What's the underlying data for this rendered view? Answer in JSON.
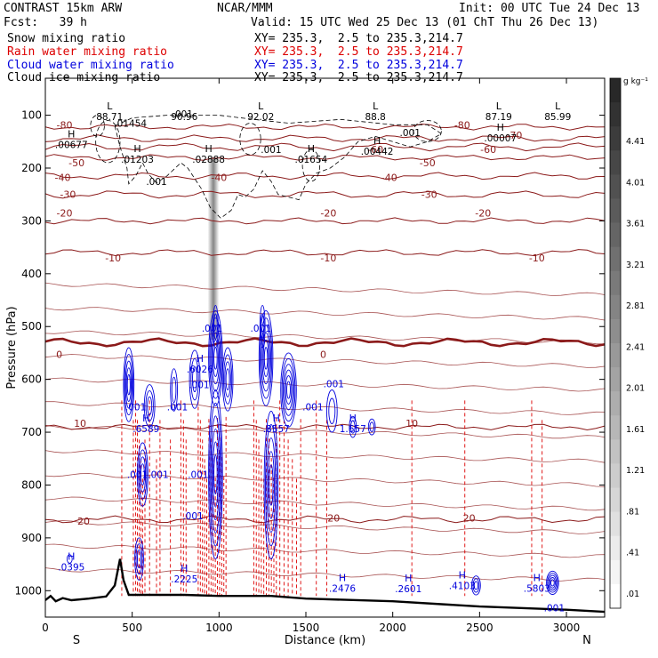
{
  "header": {
    "title": "CONTRAST 15km ARW",
    "center": "NCAR/MMM",
    "init": "Init: 00 UTC Tue 24 Dec 13",
    "fcst": "Fcst:   39 h",
    "valid": "Valid: 15 UTC Wed 25 Dec 13 (01 ChT Thu 26 Dec 13)"
  },
  "legend": {
    "fields": [
      {
        "name": "Snow mixing ratio",
        "xy": "XY= 235.3,  2.5 to 235.3,214.7",
        "color": "#000000"
      },
      {
        "name": "Rain water mixing ratio",
        "xy": "XY= 235.3,  2.5 to 235.3,214.7",
        "color": "#dd0000"
      },
      {
        "name": "Cloud water mixing ratio",
        "xy": "XY= 235.3,  2.5 to 235.3,214.7",
        "color": "#0000dd"
      },
      {
        "name": "Cloud ice mixing ratio",
        "xy": "XY= 235.3,  2.5 to 235.3,214.7",
        "color": "#000000"
      }
    ]
  },
  "chart_data": {
    "type": "contour cross-section",
    "xlabel": "Distance (km)",
    "ylabel": "Pressure (hPa)",
    "x_ticks": [
      0,
      500,
      1000,
      1500,
      2000,
      2500,
      3000
    ],
    "y_ticks": [
      100,
      200,
      300,
      400,
      500,
      600,
      700,
      800,
      900,
      1000
    ],
    "xlim": [
      0,
      3220
    ],
    "ylim": [
      1050,
      30
    ],
    "x_end_labels": {
      "left": "S",
      "right": "N"
    },
    "temperature_isotherms": {
      "color": "#8b1a1a",
      "levels": [
        {
          "t": -80,
          "p": 122
        },
        {
          "t": -70,
          "p": 144
        },
        {
          "t": -60,
          "p": 160
        },
        {
          "t": -50,
          "p": 180
        },
        {
          "t": -40,
          "p": 215
        },
        {
          "t": -30,
          "p": 250
        },
        {
          "t": -20,
          "p": 300
        },
        {
          "t": -10,
          "p": 360
        },
        {
          "t": 0,
          "p": 530
        },
        {
          "t": 10,
          "p": 690
        },
        {
          "t": 20,
          "p": 865
        }
      ],
      "labels": [
        {
          "text": "-80",
          "x": 110,
          "p": 118
        },
        {
          "text": "-80",
          "x": 2400,
          "p": 118
        },
        {
          "text": "-70",
          "x": 2700,
          "p": 138
        },
        {
          "text": "-60",
          "x": 1900,
          "p": 165
        },
        {
          "text": "-60",
          "x": 2550,
          "p": 165
        },
        {
          "text": "-50",
          "x": 180,
          "p": 190
        },
        {
          "text": "-50",
          "x": 2200,
          "p": 190
        },
        {
          "text": "-40",
          "x": 100,
          "p": 218
        },
        {
          "text": "-40",
          "x": 1000,
          "p": 218
        },
        {
          "text": "-40",
          "x": 1980,
          "p": 218
        },
        {
          "text": "-30",
          "x": 130,
          "p": 250
        },
        {
          "text": "-30",
          "x": 2210,
          "p": 250
        },
        {
          "text": "-20",
          "x": 110,
          "p": 285
        },
        {
          "text": "-20",
          "x": 1630,
          "p": 285
        },
        {
          "text": "-20",
          "x": 2520,
          "p": 285
        },
        {
          "text": "-10",
          "x": 390,
          "p": 370
        },
        {
          "text": "-10",
          "x": 1630,
          "p": 370
        },
        {
          "text": "-10",
          "x": 2830,
          "p": 370
        },
        {
          "text": "0",
          "x": 80,
          "p": 553
        },
        {
          "text": "0",
          "x": 1600,
          "p": 553
        },
        {
          "text": "10",
          "x": 200,
          "p": 683
        },
        {
          "text": "10",
          "x": 2110,
          "p": 683
        },
        {
          "text": "20",
          "x": 220,
          "p": 868
        },
        {
          "text": "20",
          "x": 1660,
          "p": 862
        },
        {
          "text": "20",
          "x": 2440,
          "p": 862
        }
      ]
    },
    "extrema_labels": [
      {
        "kind": "L",
        "value": "88.71",
        "x": 370,
        "p": 102
      },
      {
        "kind": "",
        "value": ".01454",
        "x": 490,
        "p": 115
      },
      {
        "kind": "",
        "value": ".001",
        "x": 790,
        "p": 97
      },
      {
        "kind": "",
        "value": "90.96",
        "x": 800,
        "p": 102
      },
      {
        "kind": "L",
        "value": "92.02",
        "x": 1240,
        "p": 102
      },
      {
        "kind": "L",
        "value": "88.8",
        "x": 1900,
        "p": 102
      },
      {
        "kind": "",
        "value": ".001",
        "x": 2100,
        "p": 133
      },
      {
        "kind": "L",
        "value": "87.19",
        "x": 2610,
        "p": 102
      },
      {
        "kind": "L",
        "value": "85.99",
        "x": 2950,
        "p": 102
      },
      {
        "kind": "H",
        "value": ".00007",
        "x": 2620,
        "p": 143
      },
      {
        "kind": "H",
        "value": ".00677",
        "x": 150,
        "p": 155
      },
      {
        "kind": "",
        "value": ".001",
        "x": 1300,
        "p": 165
      },
      {
        "kind": "H",
        "value": ".01203",
        "x": 530,
        "p": 183
      },
      {
        "kind": "H",
        "value": ".02888",
        "x": 940,
        "p": 183
      },
      {
        "kind": "H",
        "value": ".01654",
        "x": 1530,
        "p": 183
      },
      {
        "kind": "H",
        "value": ".00442",
        "x": 1910,
        "p": 168
      },
      {
        "kind": "",
        "value": ".001",
        "x": 640,
        "p": 225
      },
      {
        "kind": "",
        "value": ".001",
        "x": 960,
        "p": 503
      },
      {
        "kind": "",
        "value": ".001",
        "x": 1240,
        "p": 503
      },
      {
        "kind": "H",
        "value": ".6026",
        "x": 890,
        "p": 580
      },
      {
        "kind": "",
        "value": ".001",
        "x": 885,
        "p": 610
      },
      {
        "kind": "",
        "value": ".001",
        "x": 1660,
        "p": 608
      },
      {
        "kind": "",
        "value": ".001",
        "x": 520,
        "p": 652
      },
      {
        "kind": "",
        "value": ".001",
        "x": 760,
        "p": 652
      },
      {
        "kind": "",
        "value": ".001",
        "x": 1540,
        "p": 652
      },
      {
        "kind": "H",
        "value": ".6589",
        "x": 580,
        "p": 693
      },
      {
        "kind": "H",
        "value": ".8557",
        "x": 1330,
        "p": 693
      },
      {
        "kind": "H",
        "value": "1.657",
        "x": 1770,
        "p": 693
      },
      {
        "kind": "",
        "value": ".001",
        "x": 530,
        "p": 780
      },
      {
        "kind": "",
        "value": ".001",
        "x": 650,
        "p": 780
      },
      {
        "kind": "",
        "value": ".001",
        "x": 880,
        "p": 780
      },
      {
        "kind": "",
        "value": ".001",
        "x": 850,
        "p": 858
      },
      {
        "kind": "H",
        "value": ".0395",
        "x": 150,
        "p": 955
      },
      {
        "kind": "H",
        "value": ".2225",
        "x": 800,
        "p": 978
      },
      {
        "kind": "H",
        "value": ".2476",
        "x": 1710,
        "p": 995
      },
      {
        "kind": "H",
        "value": ".2601",
        "x": 2090,
        "p": 996
      },
      {
        "kind": "H",
        "value": ".4103",
        "x": 2400,
        "p": 990
      },
      {
        "kind": "H",
        "value": ".5803",
        "x": 2830,
        "p": 995
      },
      {
        "kind": "",
        "value": ".001",
        "x": 2930,
        "p": 1032
      }
    ],
    "colorbar": {
      "unit": "g kg⁻¹",
      "labels": [
        "4.41",
        "4.01",
        "3.61",
        "3.21",
        "2.81",
        "2.41",
        "2.01",
        "1.61",
        "1.21",
        ".81",
        ".41",
        ".01"
      ]
    },
    "terrain": [
      [
        0,
        1018
      ],
      [
        30,
        1010
      ],
      [
        60,
        1020
      ],
      [
        100,
        1014
      ],
      [
        150,
        1018
      ],
      [
        250,
        1015
      ],
      [
        350,
        1011
      ],
      [
        400,
        990
      ],
      [
        430,
        940
      ],
      [
        450,
        980
      ],
      [
        480,
        1008
      ],
      [
        600,
        1008
      ],
      [
        800,
        1008
      ],
      [
        1000,
        1010
      ],
      [
        1300,
        1010
      ],
      [
        1500,
        1015
      ],
      [
        2000,
        1020
      ],
      [
        2500,
        1030
      ],
      [
        3000,
        1036
      ],
      [
        3220,
        1040
      ]
    ]
  }
}
